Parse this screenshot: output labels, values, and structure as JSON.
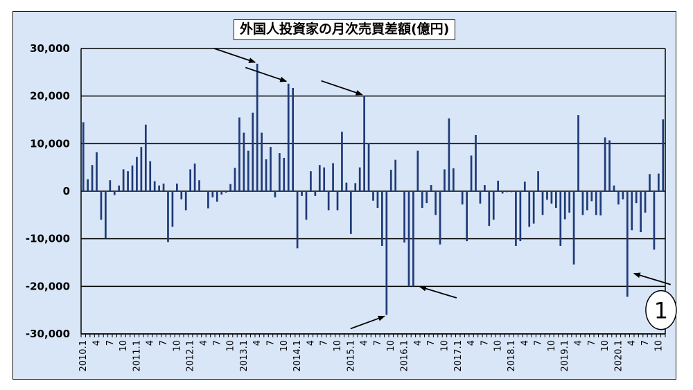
{
  "chart_data": {
    "type": "bar",
    "title": "外国人投資家の月次売買差額(億円)",
    "xlabel": "",
    "ylabel": "",
    "ylim": [
      -30000,
      30000
    ],
    "yticks": [
      30000,
      20000,
      10000,
      0,
      -10000,
      -20000,
      -30000
    ],
    "ytick_labels": [
      "30,000",
      "20,000",
      "10,000",
      "0",
      "-10,000",
      "-20,000",
      "-30,000"
    ],
    "grid": "horizontal",
    "legend": "none",
    "bar_color": "#1f3a78",
    "annotation_color": "#000000",
    "x_tick_labels": [
      {
        "i": 0,
        "label": "2010.1"
      },
      {
        "i": 3,
        "label": "4"
      },
      {
        "i": 6,
        "label": "7"
      },
      {
        "i": 9,
        "label": "10"
      },
      {
        "i": 12,
        "label": "2011.1"
      },
      {
        "i": 15,
        "label": "4"
      },
      {
        "i": 18,
        "label": "7"
      },
      {
        "i": 21,
        "label": "10"
      },
      {
        "i": 24,
        "label": "2012.1"
      },
      {
        "i": 27,
        "label": "4"
      },
      {
        "i": 30,
        "label": "7"
      },
      {
        "i": 33,
        "label": "10"
      },
      {
        "i": 36,
        "label": "2013.1"
      },
      {
        "i": 39,
        "label": "4"
      },
      {
        "i": 42,
        "label": "7"
      },
      {
        "i": 45,
        "label": "10"
      },
      {
        "i": 48,
        "label": "2014.1"
      },
      {
        "i": 51,
        "label": "4"
      },
      {
        "i": 54,
        "label": "7"
      },
      {
        "i": 57,
        "label": "10"
      },
      {
        "i": 60,
        "label": "2015.1"
      },
      {
        "i": 63,
        "label": "4"
      },
      {
        "i": 66,
        "label": "7"
      },
      {
        "i": 69,
        "label": "10"
      },
      {
        "i": 72,
        "label": "2016.1"
      },
      {
        "i": 75,
        "label": "4"
      },
      {
        "i": 78,
        "label": "7"
      },
      {
        "i": 81,
        "label": "10"
      },
      {
        "i": 84,
        "label": "2017.1"
      },
      {
        "i": 87,
        "label": "4"
      },
      {
        "i": 90,
        "label": "7"
      },
      {
        "i": 93,
        "label": "10"
      },
      {
        "i": 96,
        "label": "2018.1"
      },
      {
        "i": 99,
        "label": "4"
      },
      {
        "i": 102,
        "label": "7"
      },
      {
        "i": 105,
        "label": "10"
      },
      {
        "i": 108,
        "label": "2019.1"
      },
      {
        "i": 111,
        "label": "4"
      },
      {
        "i": 114,
        "label": "7"
      },
      {
        "i": 117,
        "label": "10"
      },
      {
        "i": 120,
        "label": "2020.1"
      },
      {
        "i": 123,
        "label": "4"
      },
      {
        "i": 126,
        "label": "7"
      },
      {
        "i": 129,
        "label": "10"
      }
    ],
    "values": [
      14500,
      2500,
      5500,
      8200,
      -6000,
      -10000,
      2300,
      -800,
      1200,
      4600,
      4200,
      5400,
      7200,
      9300,
      14000,
      6300,
      2100,
      1200,
      1600,
      -10700,
      -7500,
      1600,
      -1700,
      -4000,
      4600,
      5800,
      2300,
      0,
      -3600,
      -1300,
      -2200,
      -700,
      -300,
      1500,
      4900,
      15500,
      12300,
      8500,
      16500,
      26800,
      12300,
      6700,
      9300,
      -1300,
      8000,
      7000,
      22600,
      21700,
      -12000,
      -1000,
      -6000,
      4200,
      -1000,
      5500,
      5000,
      -4000,
      5900,
      -4000,
      12500,
      1800,
      -9000,
      1700,
      5000,
      20000,
      10000,
      -2000,
      -3500,
      -11500,
      -26000,
      4500,
      6600,
      0,
      -10800,
      -20000,
      -20000,
      8500,
      -3500,
      -2500,
      1300,
      -5000,
      -11200,
      4600,
      15300,
      4800,
      0,
      -2800,
      -10500,
      7500,
      11800,
      -2600,
      1300,
      -7300,
      -6000,
      2200,
      -500,
      -200,
      -200,
      -11500,
      -10500,
      2000,
      -7500,
      -6800,
      4200,
      -5000,
      -1800,
      -2600,
      -3500,
      -11500,
      -5900,
      -4500,
      -15400,
      16000,
      -5000,
      -4000,
      -2100,
      -5000,
      -5100,
      11300,
      10700,
      1200,
      -2800,
      -1700,
      -22200,
      -8200,
      -2500,
      -8600,
      -4500,
      3600,
      -12300,
      3700,
      15100
    ],
    "annotations": [
      {
        "type": "arrow",
        "x_index": 39,
        "y_value": 26800,
        "direction": "from-upper-left"
      },
      {
        "type": "arrow",
        "x_index": 46,
        "y_value": 22800,
        "direction": "from-upper-left"
      },
      {
        "type": "arrow",
        "x_index": 63,
        "y_value": 20000,
        "direction": "from-upper-left"
      },
      {
        "type": "arrow",
        "x_index": 68,
        "y_value": -26000,
        "direction": "from-lower-left"
      },
      {
        "type": "arrow",
        "x_index": 75,
        "y_value": -19800,
        "direction": "from-lower-right"
      },
      {
        "type": "arrow",
        "x_index": 123,
        "y_value": -17000,
        "direction": "from-lower-right"
      },
      {
        "type": "circled-label",
        "text": "1",
        "x_index": 128,
        "y_value": -25000
      }
    ]
  }
}
